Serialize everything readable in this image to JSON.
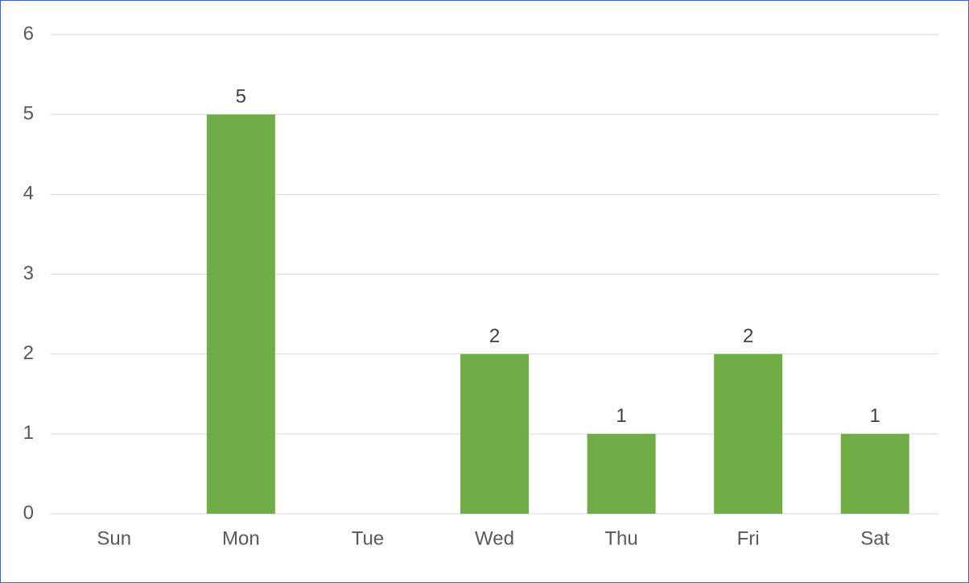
{
  "chart_data": {
    "type": "bar",
    "categories": [
      "Sun",
      "Mon",
      "Tue",
      "Wed",
      "Thu",
      "Fri",
      "Sat"
    ],
    "values": [
      null,
      5,
      null,
      2,
      1,
      2,
      1
    ],
    "color": "#70ad47",
    "ylim": [
      0,
      6
    ],
    "yticks": [
      0,
      1,
      2,
      3,
      4,
      5,
      6
    ],
    "grid": true
  }
}
